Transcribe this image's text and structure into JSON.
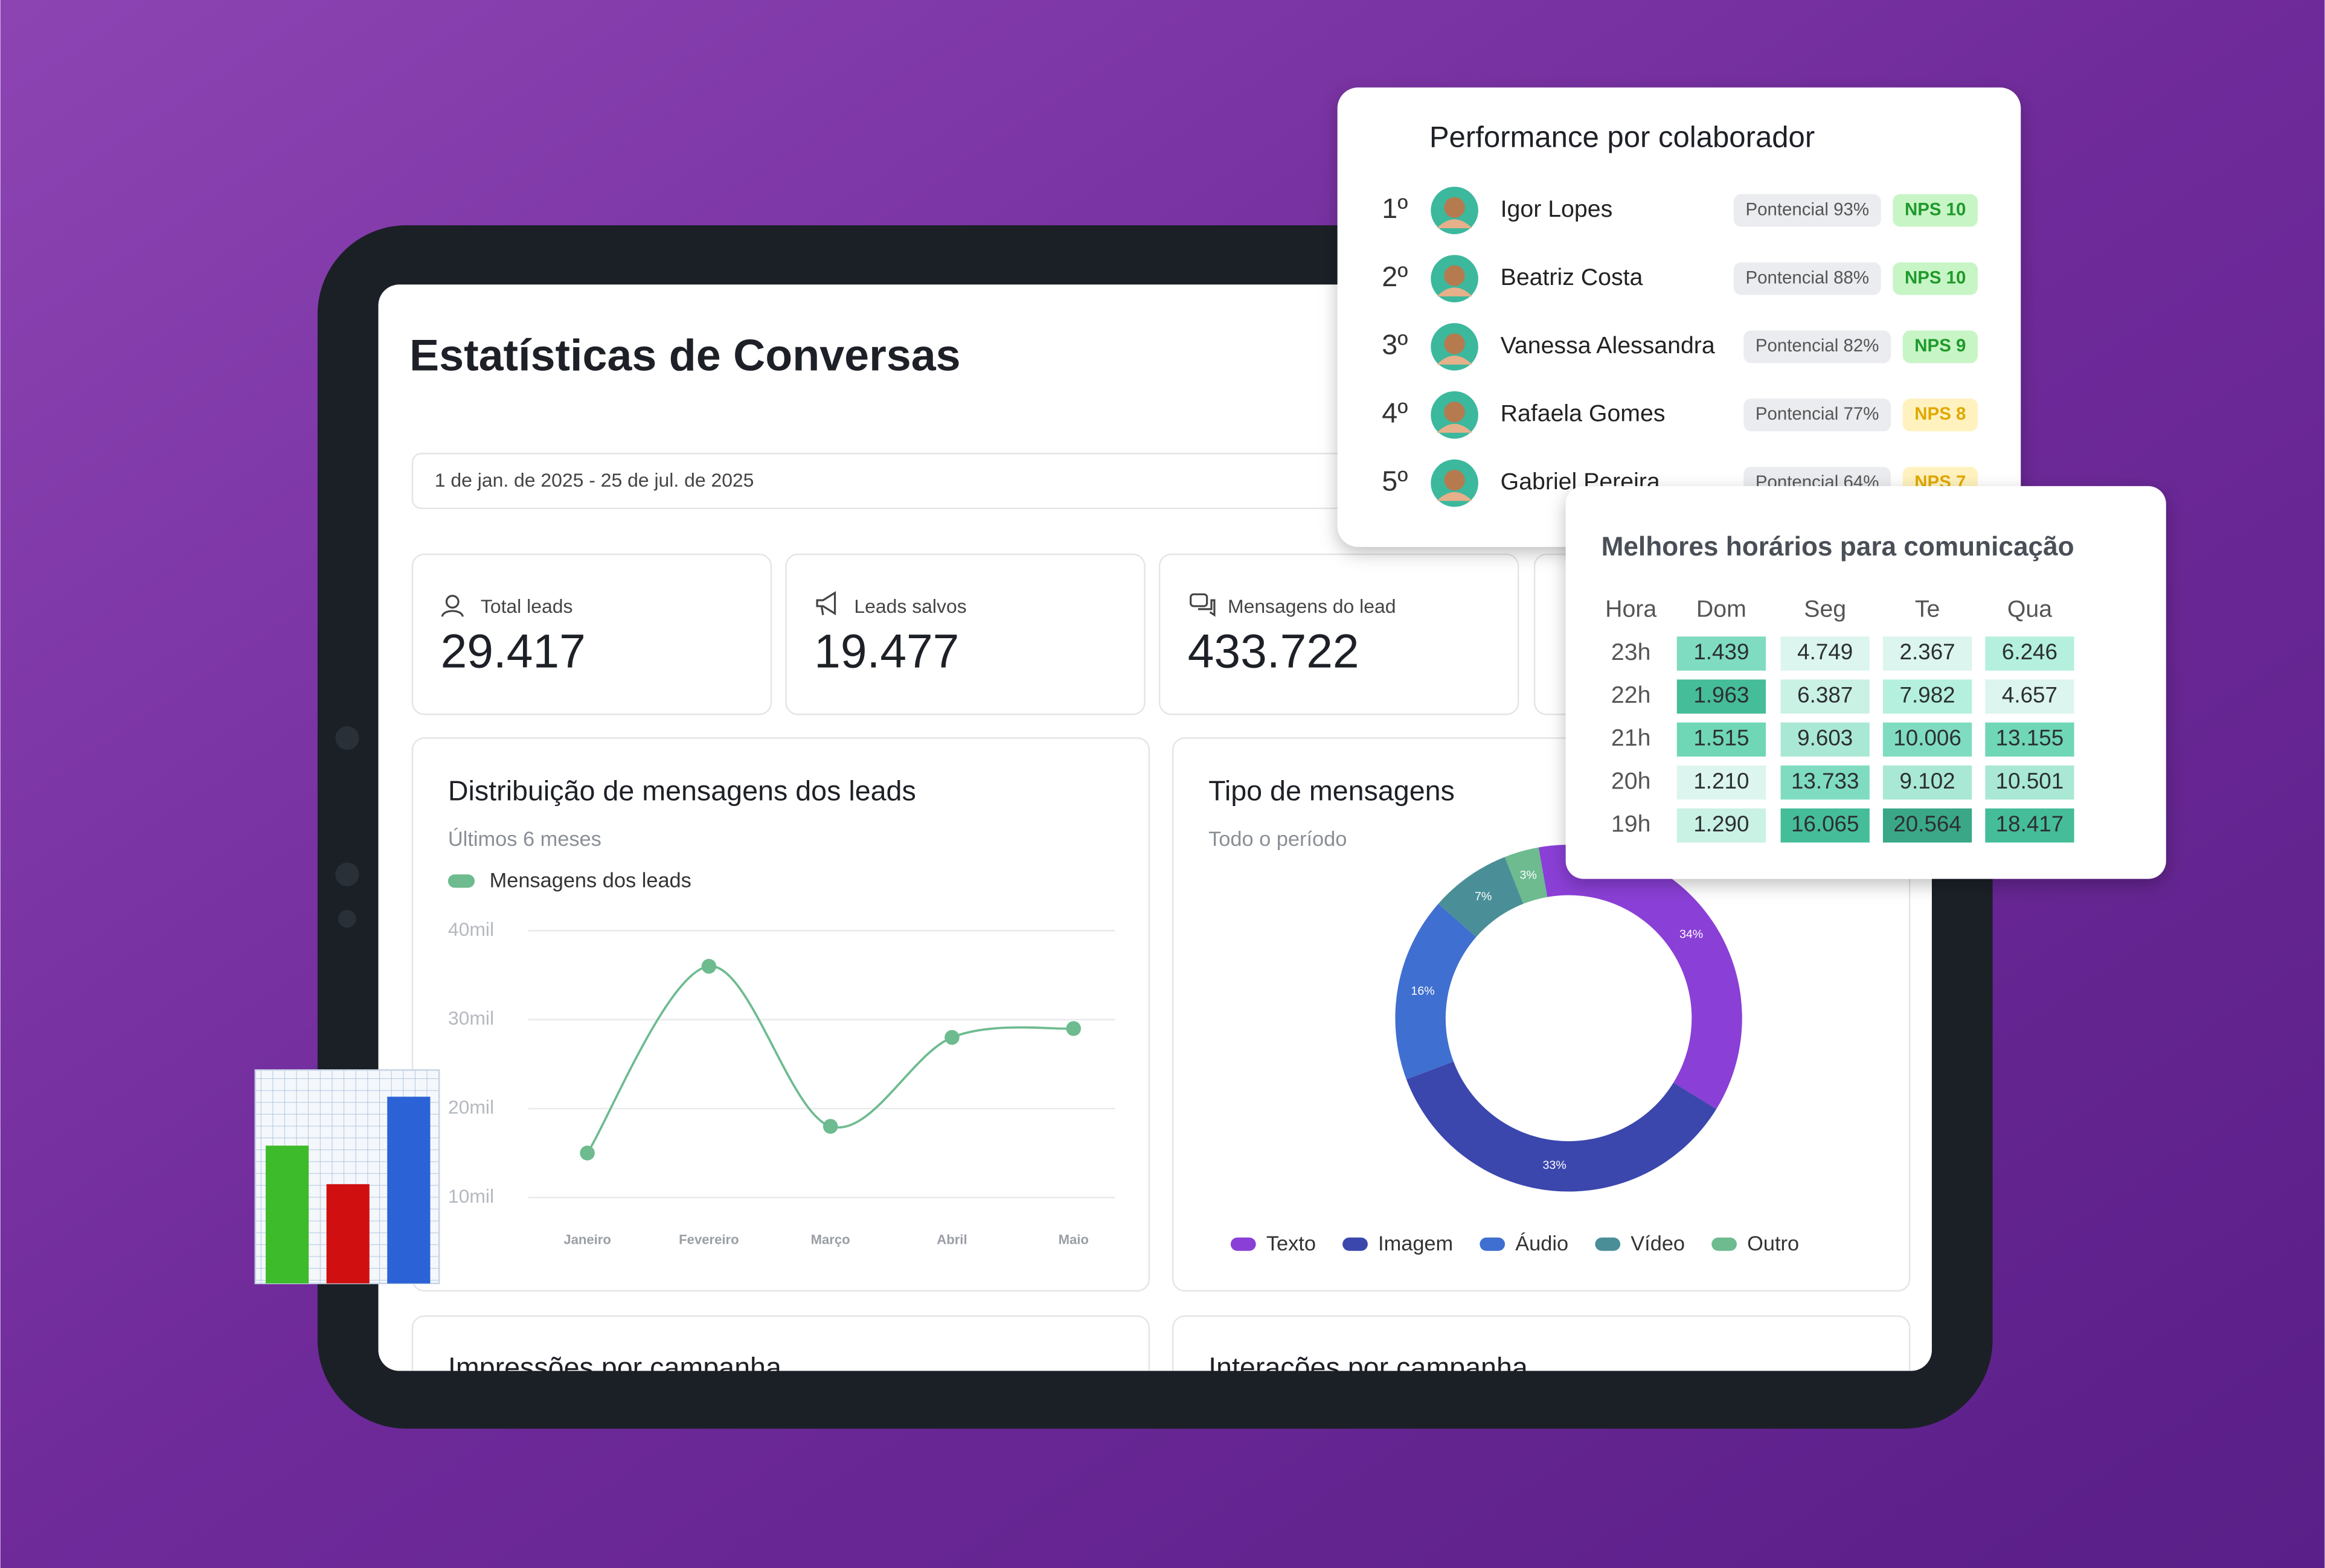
{
  "dashboard": {
    "title": "Estatísticas de Conversas",
    "date_range": "1 de jan. de 2025 - 25 de jul. de 2025",
    "kpis": [
      {
        "label": "Total leads",
        "value": "29.417"
      },
      {
        "label": "Leads salvos",
        "value": "19.477"
      },
      {
        "label": "Mensagens do lead",
        "value": "433.722"
      }
    ],
    "bottom_cards": [
      "Impressões por campanha",
      "Interações por campanha"
    ]
  },
  "chart_data": [
    {
      "type": "line",
      "title": "Distribuição de mensagens dos leads",
      "subtitle": "Últimos 6 meses",
      "categories": [
        "Janeiro",
        "Fevereiro",
        "Março",
        "Abril",
        "Maio"
      ],
      "series": [
        {
          "name": "Mensagens dos leads",
          "color": "#6dbb8f",
          "values": [
            15000,
            36000,
            18000,
            28000,
            29000
          ]
        }
      ],
      "ylim": [
        10000,
        40000
      ],
      "yticks": [
        {
          "value": 10000,
          "label": "10mil"
        },
        {
          "value": 20000,
          "label": "20mil"
        },
        {
          "value": 30000,
          "label": "30mil"
        },
        {
          "value": 40000,
          "label": "40mil"
        }
      ],
      "grid": true
    },
    {
      "type": "pie",
      "donut": true,
      "title": "Tipo de mensagens",
      "subtitle": "Todo o período",
      "categories": [
        "Texto",
        "Imagem",
        "Áudio",
        "Vídeo",
        "Outro"
      ],
      "values": [
        34,
        33,
        16,
        7,
        3
      ],
      "value_labels": [
        "34%",
        "33%",
        "16%",
        "7%",
        "3%"
      ],
      "colors": [
        "#8a3fd6",
        "#3b47ad",
        "#3f6fd0",
        "#4a8f98",
        "#6dbb8f"
      ]
    }
  ],
  "performance": {
    "title": "Performance por colaborador",
    "rows": [
      {
        "rank": "1º",
        "name": "Igor Lopes",
        "potential": "Pontencial 93%",
        "nps": "NPS 10",
        "nps_tone": "green"
      },
      {
        "rank": "2º",
        "name": "Beatriz Costa",
        "potential": "Pontencial 88%",
        "nps": "NPS 10",
        "nps_tone": "green"
      },
      {
        "rank": "3º",
        "name": "Vanessa Alessandra",
        "potential": "Pontencial 82%",
        "nps": "NPS 9",
        "nps_tone": "green"
      },
      {
        "rank": "4º",
        "name": "Rafaela Gomes",
        "potential": "Pontencial 77%",
        "nps": "NPS 8",
        "nps_tone": "yellow"
      },
      {
        "rank": "5º",
        "name": "Gabriel Pereira",
        "potential": "Pontencial 64%",
        "nps": "NPS 7",
        "nps_tone": "yellow"
      }
    ]
  },
  "best_hours": {
    "title": "Melhores horários para comunicação",
    "columns": [
      "Hora",
      "Dom",
      "Seg",
      "Te",
      "Qua"
    ],
    "rows": [
      {
        "hour": "23h",
        "cells": [
          {
            "text": "1.439",
            "color": "#7fdcc0"
          },
          {
            "text": "4.749",
            "color": "#dcf5ee"
          },
          {
            "text": "2.367",
            "color": "#dcf5ee"
          },
          {
            "text": "6.246",
            "color": "#b4f0dd"
          }
        ]
      },
      {
        "hour": "22h",
        "cells": [
          {
            "text": "1.963",
            "color": "#45bd99"
          },
          {
            "text": "6.387",
            "color": "#c9f1e4"
          },
          {
            "text": "7.982",
            "color": "#b4f0dd"
          },
          {
            "text": "4.657",
            "color": "#dcf5ee"
          }
        ]
      },
      {
        "hour": "21h",
        "cells": [
          {
            "text": "1.515",
            "color": "#6fd6b6"
          },
          {
            "text": "9.603",
            "color": "#a9e8d4"
          },
          {
            "text": "10.006",
            "color": "#7fdcc0"
          },
          {
            "text": "13.155",
            "color": "#6fd6b6"
          }
        ]
      },
      {
        "hour": "20h",
        "cells": [
          {
            "text": "1.210",
            "color": "#dcf5ee"
          },
          {
            "text": "13.733",
            "color": "#7fdcc0"
          },
          {
            "text": "9.102",
            "color": "#a9e8d4"
          },
          {
            "text": "10.501",
            "color": "#a9e8d4"
          }
        ]
      },
      {
        "hour": "19h",
        "cells": [
          {
            "text": "1.290",
            "color": "#c9f1e4"
          },
          {
            "text": "16.065",
            "color": "#45bd99"
          },
          {
            "text": "20.564",
            "color": "#3aa886"
          },
          {
            "text": "18.417",
            "color": "#45bd99"
          }
        ]
      }
    ]
  }
}
